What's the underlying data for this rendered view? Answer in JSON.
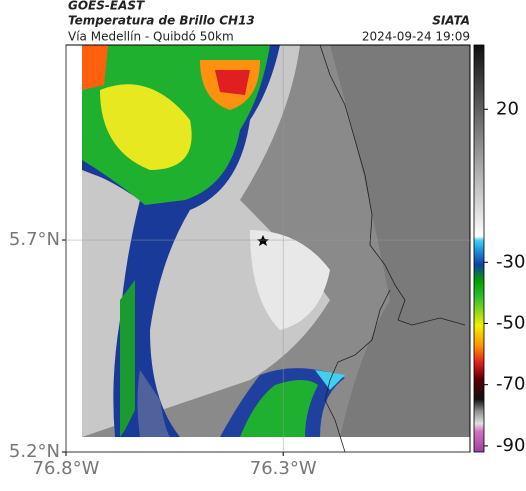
{
  "header": {
    "satellite": "GOES-EAST",
    "product": "Temperatura de Brillo CH13",
    "source": "SIATA",
    "route": "Vía Medellín - Quibdó 50km",
    "datetime": "2024-09-24 19:09"
  },
  "map": {
    "latlim": [
      5.2,
      6.16
    ],
    "lonlim": [
      -76.8,
      -75.87
    ],
    "lat_ticks": [
      {
        "value": 5.7,
        "label": "5.7°N"
      },
      {
        "value": 5.2,
        "label": "5.2°N"
      }
    ],
    "lon_ticks": [
      {
        "value": -76.8,
        "label": "76.8°W"
      },
      {
        "value": -76.3,
        "label": "76.3°W"
      }
    ]
  },
  "colorbar": {
    "lim": [
      -92,
      41
    ],
    "ticks": [
      20,
      -30,
      -50,
      -70,
      -90
    ]
  }
}
